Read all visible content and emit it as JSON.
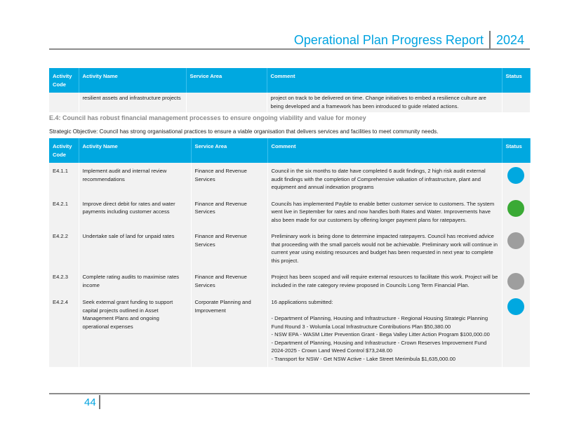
{
  "header": {
    "title": "Operational Plan Progress Report",
    "year": "2024"
  },
  "columns": [
    "Activity Code",
    "Activity Name",
    "Service Area",
    "Comment",
    "Status"
  ],
  "continued_row": {
    "name": "resilient assets and infrastructure projects",
    "service": "",
    "comment": "project on track to be delivered on time. Change initiatives to embed a resilience culture are being developed and a framework has been introduced to guide related actions."
  },
  "section": {
    "heading": "E.4: Council has robust financial management processes to ensure ongoing viability and value for money",
    "objective": "Strategic Objective: Council has strong organisational practices to ensure a viable organisation that delivers services and facilities to meet community needs."
  },
  "rows": [
    {
      "code": "E4.1.1",
      "name": "Implement audit and internal review recommendations",
      "service": "Finance and Revenue Services",
      "comment": "Council in the six months to date have completed 6 audit findings, 2 high risk audit external audit findings with the completion of Comprehensive valuation of infrastructure, plant and equipment and annual indexation programs",
      "status_color": "#00a8e0"
    },
    {
      "code": "E4.2.1",
      "name": "Improve direct debit for rates and water payments including customer access",
      "service": "Finance and Revenue Services",
      "comment": "Councils has implemented Payble to enable better customer service to customers. The system went live in September for rates and now handles both Rates and Water. Improvements have also been made for our customers by offering longer payment plans for ratepayers.",
      "status_color": "#3aaa35"
    },
    {
      "code": "E4.2.2",
      "name": "Undertake sale of land for unpaid rates",
      "service": "Finance and Revenue Services",
      "comment": "Preliminary work is being done to determine impacted ratepayers. Council has received advice that proceeding with the small parcels would not be achievable. Preliminary work will continue in current year using existing resources and budget has been requested in next year to complete this project.",
      "status_color": "#9e9e9e"
    },
    {
      "code": "E4.2.3",
      "name": "Complete rating audits to maximise rates income",
      "service": "Finance and Revenue Services",
      "comment": "Project has been scoped and will require external resources to facilitate this work. Project will be included in the rate category review proposed in Councils Long Term Financial Plan.",
      "status_color": "#9e9e9e"
    },
    {
      "code": "E4.2.4",
      "name": "Seek external grant funding to support capital projects outlined in Asset Management Plans and ongoing operational expenses",
      "service": "Corporate Planning and Improvement",
      "comment_lines": [
        "16 applications submitted:",
        "",
        "- Department of Planning, Housing and Infrastructure - Regional Housing Strategic Planning Fund Round 3 - Wolumla Local Infrastructure Contributions Plan $50,380.00",
        "- NSW EPA - WASM Litter Prevention Grant - Bega Valley Litter Action Program $100,000.00",
        "- Department of Planning, Housing and Infrastructure - Crown Reserves Improvement Fund 2024-2025 - Crown Land Weed Control $73,248.00",
        "- Transport for NSW - Get NSW Active - Lake Street Merimbula $1,635,000.00"
      ],
      "status_color": "#00a8e0"
    }
  ],
  "footer": {
    "page": "44"
  }
}
